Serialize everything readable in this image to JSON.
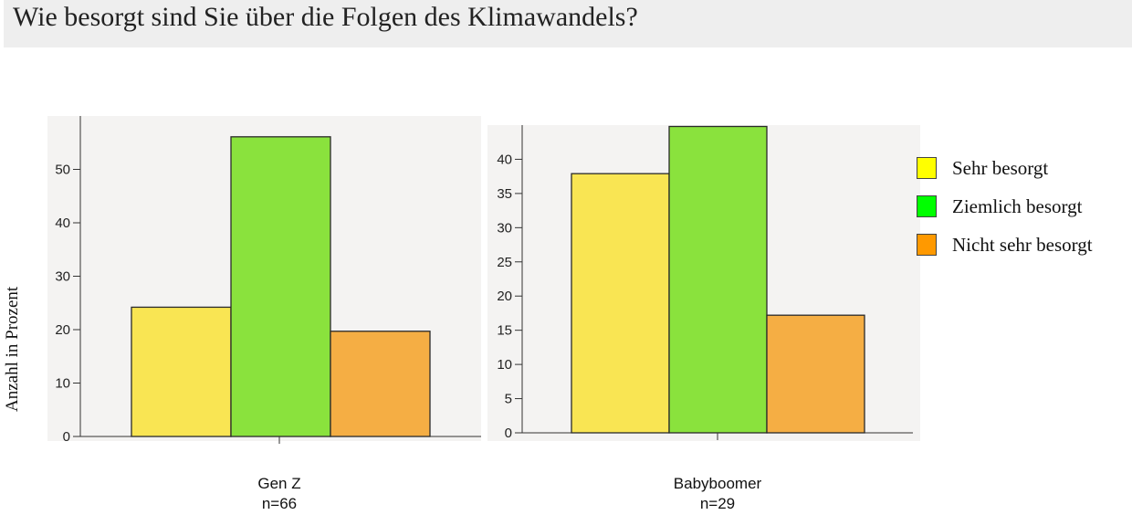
{
  "title": "Wie besorgt sind Sie über die Folgen des Klimawandels?",
  "colors": {
    "sehr": "#f9e553",
    "ziemlich": "#8ae23d",
    "nicht": "#f5ae44",
    "legend_sehr": "#ffff00",
    "legend_ziemlich": "#00ff00",
    "legend_nicht": "#ff9900",
    "panel_bg": "#f4f3f2"
  },
  "legend": [
    {
      "label": "Sehr besorgt",
      "color_key": "legend_sehr"
    },
    {
      "label": "Ziemlich besorgt",
      "color_key": "legend_ziemlich"
    },
    {
      "label": "Nicht sehr besorgt",
      "color_key": "legend_nicht"
    }
  ],
  "chart_data": [
    {
      "type": "bar",
      "title": "",
      "ylabel": "Anzahl in Prozent",
      "xlabel": "",
      "category": "Gen Z",
      "sample_size": "n=66",
      "series": [
        {
          "name": "Sehr besorgt",
          "value": 24.2
        },
        {
          "name": "Ziemlich besorgt",
          "value": 56.1
        },
        {
          "name": "Nicht sehr besorgt",
          "value": 19.7
        }
      ],
      "ylim": [
        0,
        60
      ],
      "yticks": [
        0,
        10,
        20,
        30,
        40,
        50
      ]
    },
    {
      "type": "bar",
      "title": "",
      "ylabel": "Anzahl in Prozent",
      "xlabel": "",
      "category": "Babyboomer",
      "sample_size": "n=29",
      "series": [
        {
          "name": "Sehr besorgt",
          "value": 37.9
        },
        {
          "name": "Ziemlich besorgt",
          "value": 44.8
        },
        {
          "name": "Nicht sehr besorgt",
          "value": 17.2
        }
      ],
      "ylim": [
        0,
        45
      ],
      "yticks": [
        0,
        5,
        10,
        15,
        20,
        25,
        30,
        35,
        40
      ]
    }
  ]
}
